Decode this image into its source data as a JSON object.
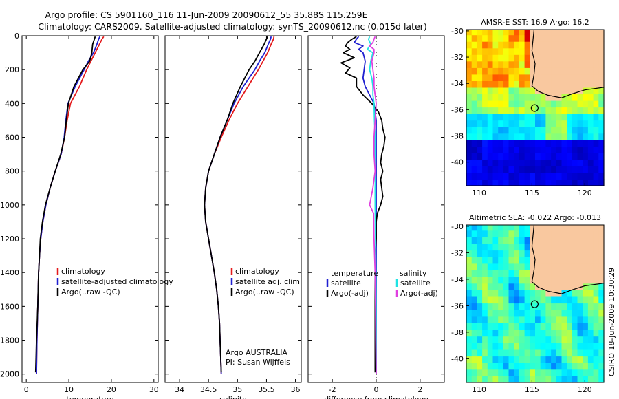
{
  "header": {
    "line1": "Argo profile: CS 5901160_116 11-Jun-2009 20090612_55 35.88S 115.259E",
    "line2": "Climatology: CARS2009. Satellite-adjusted climatology: synTS_20090612.nc (0.015d later)"
  },
  "footer": {
    "stamp": "CSIRO 18-Jun-2009 10:30:29"
  },
  "colors": {
    "climatology": "#e41a1c",
    "satellite": "#1f1fd0",
    "argo": "#000000",
    "sat_salinity": "#1fe3e3",
    "argo_adj_salinity": "#e040e0",
    "land": "#f9c89f"
  },
  "chart_data": [
    {
      "type": "line",
      "id": "temperature",
      "xlabel": "temperature",
      "ylabel": "",
      "xlim": [
        -1,
        31
      ],
      "ylim": [
        2050,
        0
      ],
      "xticks": [
        "0",
        "10",
        "20",
        "30"
      ],
      "xtick_values": [
        0,
        10,
        20,
        30
      ],
      "yticks": [
        "0",
        "200",
        "400",
        "600",
        "800",
        "1000",
        "1200",
        "1400",
        "1600",
        "1800",
        "2000"
      ],
      "ytick_values": [
        0,
        200,
        400,
        600,
        800,
        1000,
        1200,
        1400,
        1600,
        1800,
        2000
      ],
      "legend": [
        "climatology",
        "satellite-adjusted climatology",
        "Argo(..raw -QC)"
      ],
      "series": [
        {
          "name": "climatology",
          "color": "#e41a1c",
          "depth": [
            5,
            20,
            50,
            100,
            150,
            200,
            300,
            400,
            500,
            600,
            700,
            800,
            900,
            1000,
            1100,
            1200,
            1300,
            1400,
            1500,
            1600,
            1700,
            1800,
            1900,
            2000
          ],
          "values": [
            18.2,
            17.8,
            17.2,
            16.2,
            15.2,
            14.2,
            12.5,
            10.4,
            9.6,
            9.0,
            8.2,
            6.8,
            5.6,
            4.6,
            3.9,
            3.4,
            3.1,
            2.9,
            2.8,
            2.7,
            2.6,
            2.5,
            2.45,
            2.4
          ]
        },
        {
          "name": "satellite-adjusted climatology",
          "color": "#1f1fd0",
          "depth": [
            5,
            20,
            50,
            100,
            150,
            200,
            300,
            400,
            500,
            600,
            700,
            800,
            900,
            1000,
            1100,
            1200,
            1300,
            1400,
            1500,
            1600,
            1700,
            1800,
            1900,
            2000
          ],
          "values": [
            17.3,
            17.0,
            16.6,
            15.8,
            14.6,
            13.6,
            11.5,
            9.8,
            9.3,
            8.9,
            8.2,
            6.8,
            5.6,
            4.6,
            3.9,
            3.4,
            3.1,
            2.9,
            2.8,
            2.7,
            2.6,
            2.5,
            2.45,
            2.4
          ]
        },
        {
          "name": "Argo(..raw -QC)",
          "color": "#000000",
          "depth": [
            5,
            20,
            50,
            100,
            150,
            200,
            300,
            400,
            500,
            600,
            700,
            800,
            900,
            1000,
            1100,
            1200,
            1300,
            1400,
            1500,
            1600,
            1700,
            1800,
            1900,
            1990
          ],
          "values": [
            16.2,
            16.0,
            15.6,
            15.4,
            14.9,
            13.3,
            11.2,
            9.9,
            9.4,
            9.0,
            8.1,
            6.8,
            5.6,
            4.5,
            3.8,
            3.3,
            3.1,
            2.9,
            2.8,
            2.7,
            2.55,
            2.4,
            2.3,
            2.2
          ]
        }
      ]
    },
    {
      "type": "line",
      "id": "salinity",
      "xlabel": "salinity",
      "ylabel": "",
      "xlim": [
        33.75,
        36.1
      ],
      "ylim": [
        2050,
        0
      ],
      "xticks": [
        "34",
        "34.5",
        "35",
        "35.5",
        "36"
      ],
      "xtick_values": [
        34,
        34.5,
        35,
        35.5,
        36
      ],
      "legend": [
        "climatology",
        "satellite adj. clim.",
        "Argo(..raw -QC)"
      ],
      "annotation": [
        "Argo AUSTRALIA",
        "PI: Susan Wijffels"
      ],
      "series": [
        {
          "name": "climatology",
          "color": "#e41a1c",
          "depth": [
            5,
            20,
            50,
            100,
            150,
            200,
            300,
            400,
            500,
            600,
            700,
            800,
            900,
            1000,
            1100,
            1200,
            1300,
            1400,
            1500,
            1600,
            1700,
            1800,
            1900,
            2000
          ],
          "values": [
            35.63,
            35.62,
            35.58,
            35.52,
            35.44,
            35.36,
            35.18,
            35.0,
            34.85,
            34.72,
            34.6,
            34.5,
            34.45,
            34.43,
            34.45,
            34.5,
            34.55,
            34.6,
            34.64,
            34.67,
            34.69,
            34.7,
            34.71,
            34.72
          ]
        },
        {
          "name": "satellite adj. clim.",
          "color": "#1f1fd0",
          "depth": [
            5,
            20,
            50,
            100,
            150,
            200,
            300,
            400,
            500,
            600,
            700,
            800,
            900,
            1000,
            1100,
            1200,
            1300,
            1400,
            1500,
            1600,
            1700,
            1800,
            1900,
            2000
          ],
          "values": [
            35.58,
            35.57,
            35.53,
            35.47,
            35.38,
            35.3,
            35.1,
            34.94,
            34.82,
            34.7,
            34.6,
            34.5,
            34.45,
            34.43,
            34.45,
            34.5,
            34.55,
            34.6,
            34.64,
            34.67,
            34.69,
            34.7,
            34.71,
            34.72
          ]
        },
        {
          "name": "Argo(..raw -QC)",
          "color": "#000000",
          "depth": [
            5,
            20,
            50,
            100,
            150,
            200,
            300,
            400,
            500,
            600,
            700,
            800,
            900,
            1000,
            1100,
            1200,
            1300,
            1400,
            1500,
            1600,
            1700,
            1800,
            1900,
            1990
          ],
          "values": [
            35.52,
            35.5,
            35.46,
            35.38,
            35.3,
            35.2,
            35.05,
            34.92,
            34.82,
            34.7,
            34.6,
            34.5,
            34.45,
            34.43,
            34.45,
            34.5,
            34.55,
            34.6,
            34.64,
            34.67,
            34.69,
            34.7,
            34.71,
            34.72
          ]
        }
      ]
    },
    {
      "type": "line",
      "id": "difference",
      "xlabel": "difference from climatology",
      "ylabel": "",
      "xlim": [
        -3.1,
        3.1
      ],
      "ylim": [
        2050,
        0
      ],
      "xticks": [
        "-2",
        "0",
        "2"
      ],
      "xtick_values": [
        -2,
        0,
        2
      ],
      "legend_temperature_header": "temperature",
      "legend_salinity_header": "salinity",
      "legend": [
        "satellite",
        "Argo(-adj)",
        "satellite",
        "Argo(-adj)"
      ],
      "series": [
        {
          "name": "temperature satellite",
          "color": "#1f1fd0",
          "depth": [
            5,
            20,
            40,
            60,
            80,
            100,
            150,
            200,
            250,
            300,
            350,
            400,
            500,
            600,
            800,
            1000,
            1200,
            1500,
            2000
          ],
          "values": [
            -0.8,
            -0.9,
            -1.0,
            -0.6,
            -0.8,
            -0.6,
            -0.5,
            -0.55,
            -0.6,
            -0.5,
            -0.3,
            -0.1,
            0.0,
            0.0,
            0.0,
            0.0,
            0.0,
            0.0,
            0.0
          ]
        },
        {
          "name": "temperature Argo(-adj)",
          "color": "#000000",
          "depth": [
            5,
            20,
            40,
            60,
            80,
            100,
            130,
            160,
            190,
            220,
            250,
            300,
            350,
            400,
            450,
            500,
            550,
            600,
            650,
            700,
            750,
            800,
            850,
            900,
            950,
            1000,
            1050,
            1100,
            1200,
            1300,
            1400,
            1500,
            1600,
            1700,
            1800,
            1900,
            1990
          ],
          "values": [
            -0.9,
            -1.1,
            -1.3,
            -1.4,
            -1.2,
            -1.5,
            -1.0,
            -1.6,
            -1.2,
            -1.4,
            -0.9,
            -0.9,
            -0.6,
            -0.2,
            0.1,
            0.25,
            0.3,
            0.4,
            0.35,
            0.25,
            0.2,
            0.3,
            0.2,
            0.25,
            0.3,
            0.2,
            0.05,
            0.0,
            0.0,
            -0.05,
            -0.05,
            -0.05,
            -0.05,
            -0.05,
            -0.05,
            -0.05,
            -0.05
          ]
        },
        {
          "name": "salinity satellite",
          "color": "#1fe3e3",
          "depth": [
            5,
            20,
            50,
            80,
            100,
            150,
            200,
            250,
            300,
            350,
            400,
            500,
            600,
            700,
            800,
            900,
            1000,
            1200,
            1400,
            1600,
            1800,
            2000
          ],
          "values": [
            -0.3,
            -0.35,
            -0.25,
            -0.4,
            -0.15,
            -0.25,
            -0.3,
            -0.2,
            -0.15,
            -0.15,
            -0.1,
            -0.08,
            -0.05,
            -0.05,
            -0.03,
            -0.05,
            -0.05,
            -0.03,
            -0.02,
            -0.01,
            0.0,
            0.0
          ]
        },
        {
          "name": "salinity Argo(-adj)",
          "color": "#e040e0",
          "depth": [
            5,
            20,
            40,
            60,
            80,
            100,
            150,
            200,
            250,
            300,
            350,
            400,
            500,
            600,
            700,
            800,
            900,
            1000,
            1050,
            1200,
            1400,
            1600,
            1800,
            2000
          ],
          "values": [
            -0.05,
            -0.1,
            -0.15,
            -0.3,
            -0.1,
            -0.1,
            -0.2,
            -0.15,
            -0.1,
            -0.1,
            -0.05,
            0.0,
            -0.05,
            -0.1,
            -0.1,
            -0.05,
            -0.15,
            -0.3,
            -0.12,
            -0.1,
            -0.05,
            -0.03,
            -0.02,
            0.0
          ]
        }
      ]
    },
    {
      "type": "heatmap",
      "id": "sst_map",
      "title": "AMSR-E SST: 16.9  Argo: 16.2",
      "xlim": [
        108.8,
        121.8
      ],
      "ylim": [
        -41.8,
        -29.9
      ],
      "xticks": [
        "110",
        "115",
        "120"
      ],
      "xtick_values": [
        110,
        115,
        120
      ],
      "yticks": [
        "-30",
        "-32",
        "-34",
        "-36",
        "-38",
        "-40"
      ],
      "ytick_values": [
        -30,
        -32,
        -34,
        -36,
        -38,
        -40
      ],
      "marker": {
        "lon": 115.259,
        "lat": -35.88
      }
    },
    {
      "type": "heatmap",
      "id": "sla_map",
      "title": "Altimetric SLA: -0.022  Argo: -0.013",
      "xlim": [
        108.8,
        121.8
      ],
      "ylim": [
        -41.8,
        -29.9
      ],
      "xticks": [
        "110",
        "115",
        "120"
      ],
      "xtick_values": [
        110,
        115,
        120
      ],
      "yticks": [
        "-30",
        "-32",
        "-34",
        "-36",
        "-38",
        "-40"
      ],
      "ytick_values": [
        -30,
        -32,
        -34,
        -36,
        -38,
        -40
      ],
      "marker": {
        "lon": 115.259,
        "lat": -35.88
      }
    }
  ]
}
